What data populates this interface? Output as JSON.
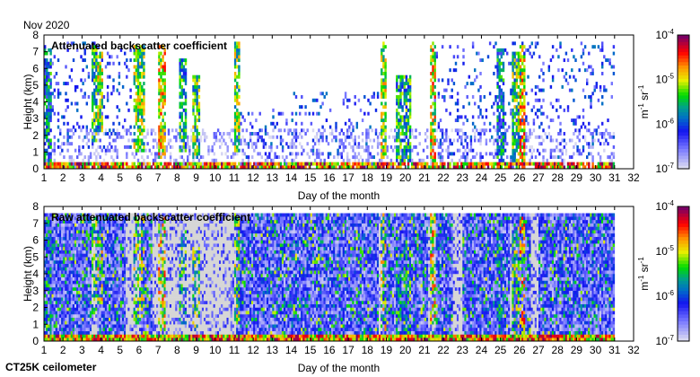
{
  "header": {
    "month_label": "Nov 2020"
  },
  "footer": {
    "instrument_label": "CT25K ceilometer"
  },
  "chart_data": [
    {
      "type": "heatmap",
      "title": "Attenuated backscatter coefficient",
      "xlabel": "Day of the month",
      "ylabel": "Height (km)",
      "xlim": [
        1,
        32
      ],
      "ylim": [
        0,
        8
      ],
      "xticks": [
        "1",
        "2",
        "3",
        "4",
        "5",
        "6",
        "7",
        "8",
        "9",
        "10",
        "11",
        "12",
        "13",
        "14",
        "15",
        "16",
        "17",
        "18",
        "19",
        "20",
        "21",
        "22",
        "23",
        "24",
        "25",
        "26",
        "27",
        "28",
        "29",
        "30",
        "31",
        "32"
      ],
      "yticks": [
        "0",
        "1",
        "2",
        "3",
        "4",
        "5",
        "6",
        "7",
        "8"
      ],
      "colorbar": {
        "label": "m-1 sr-1",
        "scale": "log",
        "ticks": [
          "10-7",
          "10-6",
          "10-5",
          "10-4"
        ],
        "range_log10": [
          -7,
          -4
        ]
      },
      "mode": "filtered",
      "cloud_columns": [
        [
          1.0,
          1.4,
          0.3,
          7.2,
          -5.8
        ],
        [
          3.5,
          3.8,
          1.5,
          7.3,
          -5.5
        ],
        [
          3.8,
          4.1,
          2.0,
          7.0,
          -5.2
        ],
        [
          5.6,
          6.2,
          1.0,
          7.3,
          -5.3
        ],
        [
          6.9,
          7.3,
          0.5,
          7.3,
          -5.0
        ],
        [
          8.0,
          8.4,
          1.0,
          6.5,
          -5.6
        ],
        [
          8.7,
          9.1,
          0.5,
          5.5,
          -5.4
        ],
        [
          10.9,
          11.2,
          1.0,
          7.5,
          -5.3
        ],
        [
          18.6,
          19.0,
          0.5,
          7.5,
          -5.2
        ],
        [
          19.5,
          20.3,
          0.4,
          5.5,
          -5.6
        ],
        [
          21.3,
          21.6,
          0.3,
          7.5,
          -5.0
        ],
        [
          24.8,
          25.2,
          0.3,
          7.2,
          -5.8
        ],
        [
          25.6,
          26.0,
          0.3,
          7.0,
          -5.4
        ],
        [
          26.0,
          26.3,
          0.3,
          7.3,
          -4.9
        ]
      ],
      "sparse_regions": [
        [
          1,
          5.5,
          1.0,
          7.5
        ],
        [
          14,
          18.5,
          0.5,
          4.5
        ],
        [
          21.5,
          31,
          0.5,
          7.5
        ],
        [
          11,
          14,
          0.5,
          3.5
        ]
      ],
      "surface_layer_max_km": 0.4
    },
    {
      "type": "heatmap",
      "title": "Raw attenuated backscatter coefficient",
      "xlabel": "Day of the month",
      "ylabel": "Height (km)",
      "xlim": [
        1,
        32
      ],
      "ylim": [
        0,
        8
      ],
      "xticks": [
        "1",
        "2",
        "3",
        "4",
        "5",
        "6",
        "7",
        "8",
        "9",
        "10",
        "11",
        "12",
        "13",
        "14",
        "15",
        "16",
        "17",
        "18",
        "19",
        "20",
        "21",
        "22",
        "23",
        "24",
        "25",
        "26",
        "27",
        "28",
        "29",
        "30",
        "31",
        "32"
      ],
      "yticks": [
        "0",
        "1",
        "2",
        "3",
        "4",
        "5",
        "6",
        "7",
        "8"
      ],
      "colorbar": {
        "label": "m-1 sr-1",
        "scale": "log",
        "ticks": [
          "10-7",
          "10-6",
          "10-5",
          "10-4"
        ],
        "range_log10": [
          -7,
          -4
        ]
      },
      "mode": "raw",
      "noisy_periods": [
        [
          1,
          3.5
        ],
        [
          3.8,
          5.2
        ],
        [
          6.0,
          6.6
        ],
        [
          11.0,
          18.5
        ],
        [
          18.8,
          21.2
        ],
        [
          21.6,
          22.5
        ],
        [
          23.0,
          25.5
        ],
        [
          25.6,
          26.6
        ],
        [
          27.0,
          31
        ]
      ],
      "data_max_km": 7.5
    }
  ]
}
